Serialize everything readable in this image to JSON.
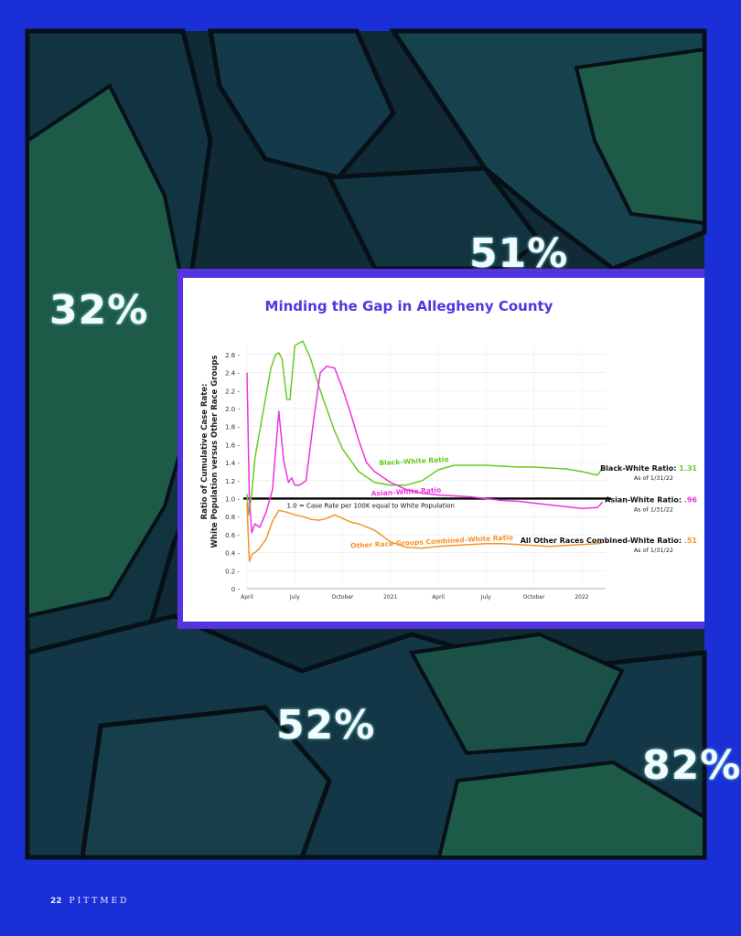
{
  "map": {
    "labels": [
      "32%",
      "51%",
      "52%",
      "82%"
    ],
    "colors": {
      "page_bg": "#1a2fd6",
      "map_bg": "#102a36",
      "region_green": "#1d5a48",
      "frame": "#5533e0"
    }
  },
  "footer": {
    "page_number": "22",
    "publication": "PITTMED"
  },
  "chart_data": {
    "type": "line",
    "title": "Minding the Gap in Allegheny County",
    "ylabel_line1": "Ratio of Cumulative Case Rate:",
    "ylabel_line2": "White Population versus Other Race Groups",
    "x_ticks": [
      "April",
      "July",
      "October",
      "2021",
      "April",
      "July",
      "October",
      "2022"
    ],
    "y_ticks": [
      "0",
      "0.2",
      "0.4",
      "0.6",
      "0.8",
      "1.0",
      "1.2",
      "1.4",
      "1.6",
      "1.8",
      "2.0",
      "2.2",
      "2.4",
      "2.6"
    ],
    "ylim": [
      0,
      2.7
    ],
    "grid": true,
    "reference_line": {
      "y": 1.0,
      "label": "1.0 = Case Rate per 100K equal to White Population"
    },
    "series": [
      {
        "name": "Black–White Ratio",
        "color": "#66cc22",
        "end_label": "Black-White Ratio:",
        "end_value": "1.31",
        "as_of": "As of 1/31/22",
        "x": [
          0,
          0.1,
          0.3,
          0.5,
          0.8,
          1.0,
          1.5,
          1.8,
          2.0,
          2.2,
          2.5,
          2.7,
          3.0,
          3.5,
          4.0,
          4.5,
          5.0,
          5.5,
          6.0,
          7.0,
          8.0,
          9.0,
          10.0,
          11.0,
          12.0,
          13.0,
          14.0,
          15.0,
          16.0,
          17.0,
          18.0,
          19.0,
          20.0,
          21.0,
          22.0,
          22.3
        ],
        "y": [
          1.05,
          0.82,
          1.05,
          1.45,
          1.75,
          1.95,
          2.45,
          2.6,
          2.62,
          2.55,
          2.1,
          2.1,
          2.7,
          2.75,
          2.55,
          2.25,
          2.0,
          1.75,
          1.55,
          1.3,
          1.18,
          1.15,
          1.15,
          1.2,
          1.32,
          1.37,
          1.37,
          1.37,
          1.36,
          1.35,
          1.35,
          1.34,
          1.33,
          1.3,
          1.26,
          1.34
        ]
      },
      {
        "name": "Asian–White Ratio",
        "color": "#ee33dd",
        "end_label": "Asian-White Ratio:",
        "end_value": ".96",
        "as_of": "As of 1/31/22",
        "x": [
          0,
          0.15,
          0.3,
          0.5,
          0.8,
          1.2,
          1.6,
          2.0,
          2.3,
          2.6,
          2.8,
          3.0,
          3.3,
          3.7,
          4.2,
          4.6,
          5.0,
          5.5,
          6.0,
          6.5,
          7.0,
          7.5,
          8.0,
          9.0,
          10.0,
          11.0,
          12.0,
          13.0,
          14.0,
          15.0,
          16.0,
          17.0,
          18.0,
          19.0,
          20.0,
          21.0,
          22.0,
          22.3
        ],
        "y": [
          2.4,
          1.0,
          0.62,
          0.72,
          0.68,
          0.85,
          1.1,
          1.97,
          1.42,
          1.18,
          1.23,
          1.15,
          1.15,
          1.2,
          1.9,
          2.4,
          2.47,
          2.45,
          2.22,
          1.95,
          1.65,
          1.4,
          1.3,
          1.18,
          1.1,
          1.06,
          1.04,
          1.03,
          1.02,
          1.0,
          0.98,
          0.97,
          0.95,
          0.93,
          0.91,
          0.89,
          0.9,
          0.96
        ]
      },
      {
        "name": "Other Race Groups Combined–White Ratio",
        "color": "#f5932a",
        "end_label": "All Other Races Combined-White Ratio:",
        "end_value": ".51",
        "as_of": "As of 1/31/22",
        "x": [
          0,
          0.15,
          0.3,
          0.5,
          0.8,
          1.2,
          1.6,
          2.0,
          2.5,
          3.0,
          3.5,
          4.0,
          4.5,
          5.0,
          5.5,
          6.0,
          6.5,
          7.0,
          8.0,
          9.0,
          10.0,
          11.0,
          12.0,
          13.0,
          14.0,
          15.0,
          16.0,
          17.0,
          18.0,
          19.0,
          20.0,
          21.0,
          22.0,
          22.3
        ],
        "y": [
          0.95,
          0.3,
          0.38,
          0.4,
          0.45,
          0.55,
          0.75,
          0.87,
          0.85,
          0.82,
          0.8,
          0.77,
          0.76,
          0.78,
          0.82,
          0.78,
          0.74,
          0.72,
          0.65,
          0.52,
          0.46,
          0.45,
          0.47,
          0.48,
          0.49,
          0.5,
          0.5,
          0.49,
          0.48,
          0.47,
          0.48,
          0.49,
          0.5,
          0.51
        ]
      }
    ]
  }
}
